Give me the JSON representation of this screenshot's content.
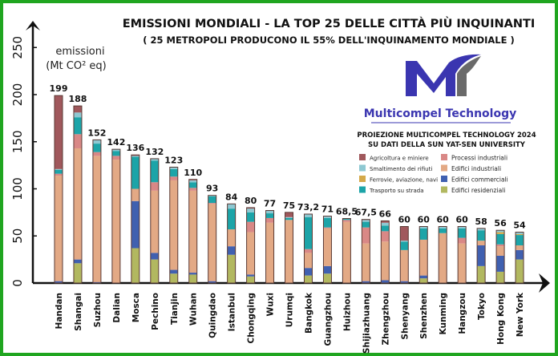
{
  "chart_data": {
    "type": "bar",
    "stacked": true,
    "title": "EMISSIONI MONDIALI - LA TOP 25 DELLE CITTÀ PIÙ INQUINANTI",
    "subtitle": "( 25 METROPOLI PRODUCONO IL 55% DELL'INQUINAMENTO MONDIALE )",
    "ylabel_line1": "emissioni",
    "ylabel_line2": "(Mt CO² eq)",
    "ylim": [
      0,
      250
    ],
    "yticks": [
      0,
      50,
      100,
      150,
      200,
      250
    ],
    "grid": false,
    "legend_placement": "right",
    "source_line1": "PROIEZIONE MULTICOMPEL TECHNOLOGY 2024",
    "source_line2": "SU DATI DELLA SUN YAT-SEN UNIVERSITY",
    "brand": "Multicompel Technology",
    "categories": [
      "Handan",
      "Shangai",
      "Suzhou",
      "Dalian",
      "Mosca",
      "Pechino",
      "Tianjin",
      "Wuhan",
      "Quingdao",
      "Istanbul",
      "Chongqing",
      "Wuxi",
      "Urumqi",
      "Bangkok",
      "Guangzhou",
      "Huizhou",
      "Shijiazhuang",
      "Zhengzhou",
      "Shenyang",
      "Shenzhen",
      "Kunming",
      "Hangzou",
      "Tokyo",
      "Hong Kong",
      "New York"
    ],
    "totals": [
      199,
      188,
      152,
      142,
      136,
      132,
      123,
      110,
      93,
      84,
      80,
      77,
      75,
      73.2,
      71,
      68.5,
      67.5,
      66,
      60,
      60,
      60,
      60,
      58,
      56,
      54
    ],
    "total_labels": [
      "199",
      "188",
      "152",
      "142",
      "136",
      "132",
      "123",
      "110",
      "93",
      "84",
      "80",
      "77",
      "75",
      "73,2",
      "71",
      "68,5",
      "67,5",
      "66",
      "60",
      "60",
      "60",
      "60",
      "58",
      "56",
      "54"
    ],
    "series": [
      {
        "name": "Edifici residenziali",
        "color": "#b2b860",
        "values": [
          0,
          21,
          0,
          0,
          37,
          25,
          10,
          9,
          0,
          30,
          7,
          0,
          0,
          8,
          10,
          0,
          0,
          0,
          0,
          5,
          0,
          0,
          18,
          12,
          25
        ]
      },
      {
        "name": "Edifici commerciali",
        "color": "#4060b0",
        "values": [
          2,
          4,
          1,
          0,
          50,
          7,
          4,
          2,
          2,
          9,
          2,
          0,
          0,
          8,
          8,
          0,
          2,
          3,
          2,
          3,
          0,
          0,
          22,
          17,
          10
        ]
      },
      {
        "name": "Edifici industriali",
        "color": "#e3a985",
        "values": [
          112,
          118,
          134,
          131,
          13,
          66,
          95,
          87,
          82,
          18,
          45,
          64,
          67,
          16,
          40,
          65,
          40,
          41,
          33,
          38,
          53,
          42,
          5,
          10,
          5
        ]
      },
      {
        "name": "Processi  industriali",
        "color": "#d98886",
        "values": [
          2,
          15,
          4,
          4,
          0,
          9,
          4,
          3,
          1,
          0,
          11,
          5,
          0,
          4,
          1,
          2,
          17,
          11,
          0,
          0,
          0,
          6,
          0,
          2,
          0
        ]
      },
      {
        "name": "Trasporto su strada",
        "color": "#1ca4a8",
        "values": [
          4,
          18,
          9,
          5,
          34,
          23,
          8,
          6,
          7,
          22,
          10,
          5,
          2,
          34,
          10,
          1.5,
          6,
          6,
          9,
          12,
          5,
          10,
          11,
          11,
          11
        ]
      },
      {
        "name": "Ferrovie, aviazione, navi",
        "color": "#d4a94a",
        "values": [
          0,
          0,
          0,
          0,
          0,
          0,
          0,
          0,
          0,
          0,
          0,
          0,
          0,
          0,
          0,
          0,
          0,
          0,
          0,
          0,
          0,
          0,
          0,
          2,
          1
        ]
      },
      {
        "name": "Smaltimento dei rifiuti",
        "color": "#8ec8d2",
        "values": [
          1,
          5,
          4,
          2,
          1,
          2,
          2,
          2,
          1,
          5,
          4,
          3,
          1,
          3.2,
          2,
          0,
          2,
          3,
          1,
          2,
          2,
          2,
          2,
          2,
          2
        ]
      },
      {
        "name": "Agricoltura e miniere",
        "color": "#a0585c",
        "values": [
          78,
          7,
          0,
          0,
          1,
          0,
          0,
          1,
          0,
          0,
          1,
          0,
          5,
          0,
          0,
          0,
          0.5,
          2,
          15,
          0,
          0,
          0,
          0,
          0,
          0
        ]
      }
    ],
    "legend_order": [
      7,
      3,
      6,
      2,
      5,
      1,
      4,
      0
    ]
  }
}
